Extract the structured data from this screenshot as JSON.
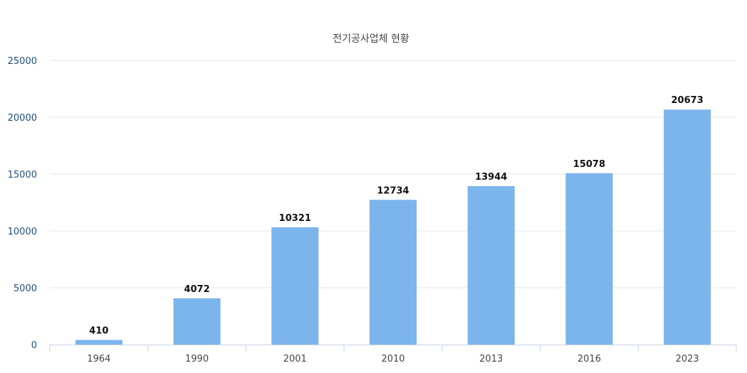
{
  "chart_data": {
    "type": "bar",
    "title": "전기공사업체 현황",
    "categories": [
      "1964",
      "1990",
      "2001",
      "2010",
      "2013",
      "2016",
      "2023"
    ],
    "values": [
      410,
      4072,
      10321,
      12734,
      13944,
      15078,
      20673
    ],
    "ylim": [
      0,
      25000
    ],
    "yticks": [
      0,
      5000,
      10000,
      15000,
      20000,
      25000
    ],
    "grid": true,
    "data_labels": true,
    "bar_color": "#7cb5ec"
  }
}
